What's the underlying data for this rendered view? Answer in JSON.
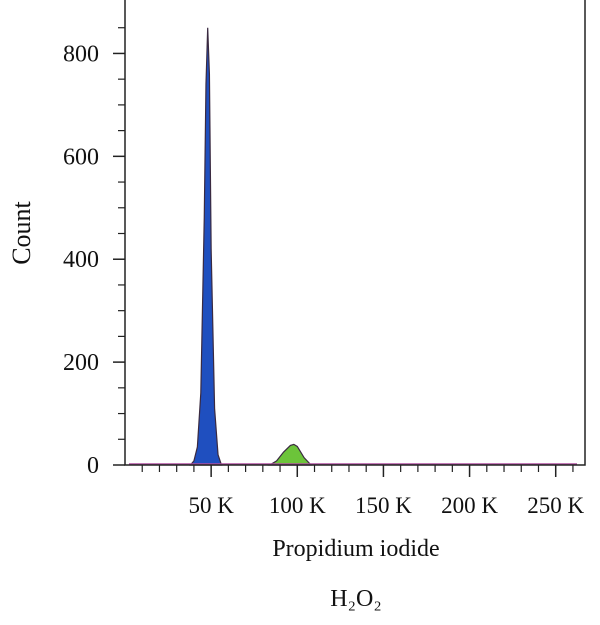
{
  "chart_data": {
    "type": "area",
    "xlabel": "Propidium iodide",
    "ylabel": "Count",
    "caption": "H₂O₂",
    "xlim": [
      0,
      267000
    ],
    "ylim": [
      0,
      900
    ],
    "xticks": [
      {
        "value": 50000,
        "label": "50 K"
      },
      {
        "value": 100000,
        "label": "100 K"
      },
      {
        "value": 150000,
        "label": "150 K"
      },
      {
        "value": 200000,
        "label": "200 K"
      },
      {
        "value": 250000,
        "label": "250 K"
      }
    ],
    "xminor_ticks": [
      10000,
      20000,
      30000,
      40000,
      60000,
      70000,
      80000,
      90000,
      110000,
      120000,
      130000,
      140000,
      160000,
      170000,
      180000,
      190000,
      210000,
      220000,
      230000,
      240000,
      260000
    ],
    "yticks": [
      0,
      200,
      400,
      600,
      800
    ],
    "yminor_ticks": [
      50,
      100,
      150,
      250,
      300,
      350,
      450,
      500,
      550,
      650,
      700,
      750,
      850
    ],
    "series": [
      {
        "color": "#1f4fbf",
        "x": [
          38000,
          40000,
          42000,
          44000,
          46000,
          47000,
          48000,
          49000,
          50000,
          52000,
          54000,
          56000
        ],
        "values": [
          0,
          8,
          35,
          140,
          480,
          740,
          850,
          760,
          420,
          110,
          20,
          0
        ]
      },
      {
        "color": "#6cc43a",
        "x": [
          84000,
          88000,
          92000,
          96000,
          98000,
          100000,
          104000,
          108000
        ],
        "values": [
          0,
          8,
          25,
          38,
          40,
          36,
          14,
          0
        ]
      }
    ]
  }
}
